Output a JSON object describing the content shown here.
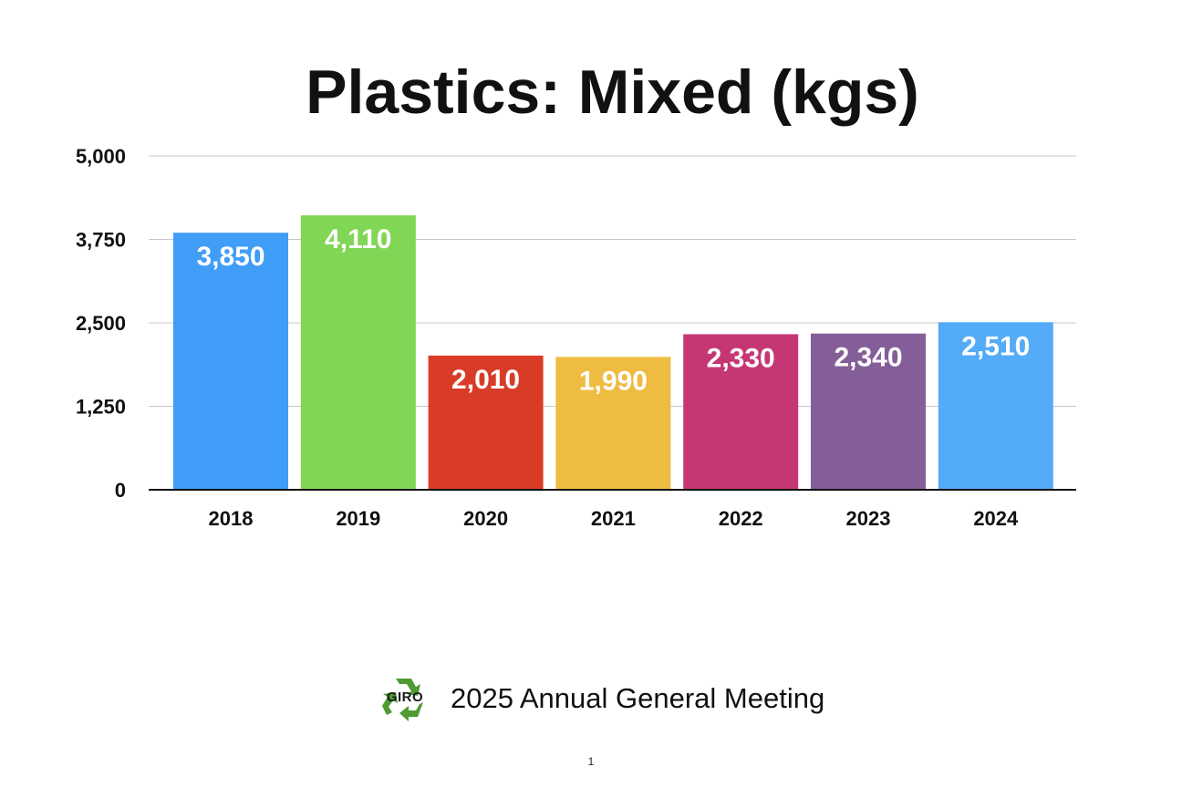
{
  "chart_data": {
    "type": "bar",
    "title": "Plastics: Mixed (kgs)",
    "categories": [
      "2018",
      "2019",
      "2020",
      "2021",
      "2022",
      "2023",
      "2024"
    ],
    "values": [
      3850,
      4110,
      2010,
      1990,
      2330,
      2340,
      2510
    ],
    "value_labels": [
      "3,850",
      "4,110",
      "2,010",
      "1,990",
      "2,330",
      "2,340",
      "2,510"
    ],
    "bar_colors": [
      "#409DF8",
      "#82D655",
      "#D83C26",
      "#EFBC42",
      "#C53774",
      "#845E98",
      "#54ABF8"
    ],
    "ylim": [
      0,
      5000
    ],
    "yticks": [
      0,
      1250,
      2500,
      3750,
      5000
    ],
    "ytick_labels": [
      "0",
      "1,250",
      "2,500",
      "3,750",
      "5,000"
    ],
    "xlabel": "",
    "ylabel": "",
    "grid": true,
    "legend": "none"
  },
  "footer": {
    "logo_text": "GIRO",
    "text": "2025 Annual General Meeting",
    "logo_color": "#4E9A33"
  },
  "page_number": "1"
}
